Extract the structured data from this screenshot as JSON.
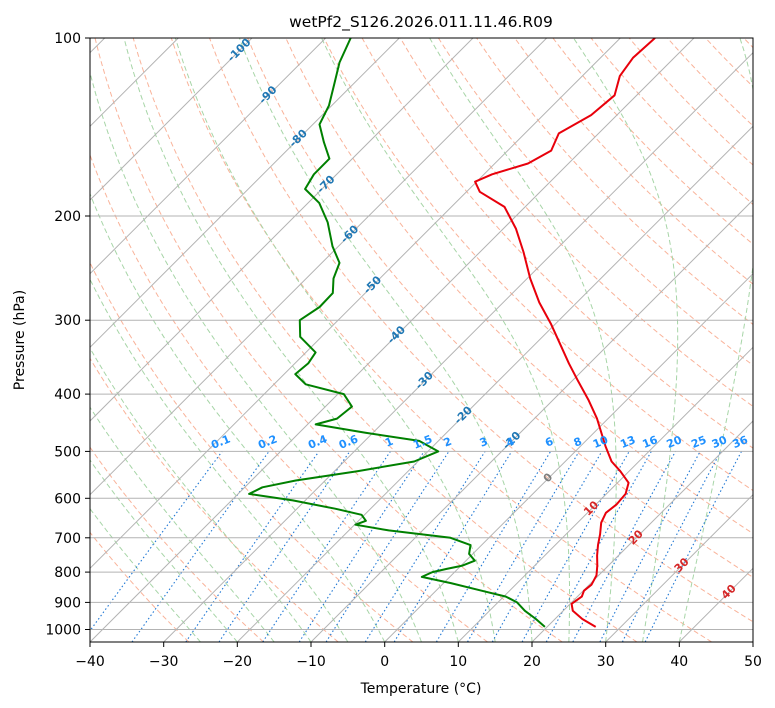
{
  "chart_data": {
    "type": "line",
    "chart_kind": "Skew-T log-P diagram",
    "title": "wetPf2_S126.2026.011.11.46.R09",
    "xlabel": "Temperature (°C)",
    "ylabel": "Pressure (hPa)",
    "xlim": [
      -40,
      50
    ],
    "ylim": [
      1050,
      100
    ],
    "y_scale": "log",
    "grid": true,
    "x_ticks": [
      -40,
      -30,
      -20,
      -10,
      0,
      10,
      20,
      30,
      40,
      50
    ],
    "x_tick_labels": [
      "−40",
      "−30",
      "−20",
      "−10",
      "0",
      "10",
      "20",
      "30",
      "40",
      "50"
    ],
    "y_ticks": [
      100,
      200,
      300,
      400,
      500,
      600,
      700,
      800,
      900,
      1000
    ],
    "y_tick_labels": [
      "100",
      "200",
      "300",
      "400",
      "500",
      "600",
      "700",
      "800",
      "900",
      "1000"
    ],
    "series": [
      {
        "role": "temperature",
        "color": "#e8000b",
        "points": [
          [
            990,
            26.6
          ],
          [
            960,
            23.7
          ],
          [
            930,
            21.3
          ],
          [
            905,
            20.2
          ],
          [
            880,
            20.6
          ],
          [
            860,
            20.1
          ],
          [
            840,
            20.3
          ],
          [
            810,
            19.7
          ],
          [
            780,
            18.5
          ],
          [
            750,
            17.1
          ],
          [
            720,
            15.8
          ],
          [
            690,
            14.6
          ],
          [
            660,
            13.2
          ],
          [
            635,
            12.5
          ],
          [
            615,
            12.8
          ],
          [
            590,
            12.6
          ],
          [
            565,
            11.5
          ],
          [
            540,
            8.8
          ],
          [
            520,
            6.3
          ],
          [
            490,
            3.4
          ],
          [
            470,
            1.5
          ],
          [
            440,
            -1.5
          ],
          [
            410,
            -5.1
          ],
          [
            380,
            -9.2
          ],
          [
            355,
            -12.8
          ],
          [
            330,
            -16.5
          ],
          [
            305,
            -20.5
          ],
          [
            280,
            -25.1
          ],
          [
            255,
            -29.6
          ],
          [
            230,
            -34.1
          ],
          [
            210,
            -38.3
          ],
          [
            193,
            -42.8
          ],
          [
            182,
            -48.2
          ],
          [
            175,
            -50.2
          ],
          [
            170,
            -48.9
          ],
          [
            163,
            -45.5
          ],
          [
            155,
            -44.1
          ],
          [
            145,
            -45.4
          ],
          [
            135,
            -43.5
          ],
          [
            125,
            -43.0
          ],
          [
            116,
            -44.9
          ],
          [
            108,
            -45.6
          ],
          [
            100,
            -45.3
          ]
        ]
      },
      {
        "role": "dewpoint",
        "color": "#008000",
        "points": [
          [
            990,
            19.7
          ],
          [
            960,
            17.4
          ],
          [
            930,
            14.8
          ],
          [
            900,
            12.6
          ],
          [
            880,
            10.3
          ],
          [
            860,
            6.2
          ],
          [
            835,
            1.0
          ],
          [
            815,
            -3.8
          ],
          [
            800,
            -3.0
          ],
          [
            790,
            -1.5
          ],
          [
            780,
            0.2
          ],
          [
            765,
            1.2
          ],
          [
            745,
            -0.5
          ],
          [
            720,
            -1.5
          ],
          [
            700,
            -5.2
          ],
          [
            680,
            -14.6
          ],
          [
            665,
            -19.9
          ],
          [
            655,
            -19.0
          ],
          [
            640,
            -20.4
          ],
          [
            625,
            -24.8
          ],
          [
            605,
            -31.7
          ],
          [
            590,
            -38.5
          ],
          [
            575,
            -37.6
          ],
          [
            560,
            -34.0
          ],
          [
            540,
            -26.9
          ],
          [
            520,
            -20.5
          ],
          [
            500,
            -18.6
          ],
          [
            480,
            -22.6
          ],
          [
            465,
            -31.0
          ],
          [
            450,
            -38.9
          ],
          [
            440,
            -36.8
          ],
          [
            420,
            -36.4
          ],
          [
            400,
            -39.2
          ],
          [
            385,
            -45.7
          ],
          [
            370,
            -48.5
          ],
          [
            355,
            -48.2
          ],
          [
            340,
            -48.7
          ],
          [
            320,
            -52.9
          ],
          [
            300,
            -55.2
          ],
          [
            285,
            -54.3
          ],
          [
            270,
            -54.4
          ],
          [
            255,
            -56.3
          ],
          [
            240,
            -57.6
          ],
          [
            225,
            -60.8
          ],
          [
            205,
            -64.7
          ],
          [
            190,
            -68.5
          ],
          [
            180,
            -72.3
          ],
          [
            170,
            -73.1
          ],
          [
            160,
            -73.1
          ],
          [
            150,
            -76.1
          ],
          [
            140,
            -79.1
          ],
          [
            130,
            -80.4
          ],
          [
            120,
            -82.5
          ],
          [
            110,
            -84.8
          ],
          [
            100,
            -86.6
          ]
        ]
      }
    ],
    "reference_lines": {
      "isotherms_interval_c": 10,
      "dry_adiabats": "dashed, light red",
      "moist_adiabats": "dashed, light green",
      "mixing_ratio_lines": "dotted, blue (below 500 hPa)",
      "isotherm_labels": [
        -100,
        -90,
        -80,
        -70,
        -60,
        -50,
        -40,
        -30,
        -20,
        -10,
        0,
        10,
        20,
        30,
        40
      ],
      "mixing_ratio_labels": [
        "0.1",
        "0.2",
        "0.4",
        "0.6",
        "1",
        "1.5",
        "2",
        "3",
        "4",
        "6",
        "8",
        "10",
        "13",
        "16",
        "20",
        "25",
        "30",
        "36"
      ]
    },
    "colors": {
      "temperature": "#e8000b",
      "dewpoint": "#008000",
      "isotherm_label_cold": "#1f77b4",
      "isotherm_label_zero": "#7f7f7f",
      "isotherm_label_warm": "#d62728",
      "mixing_ratio_label": "#1e90ff"
    }
  }
}
